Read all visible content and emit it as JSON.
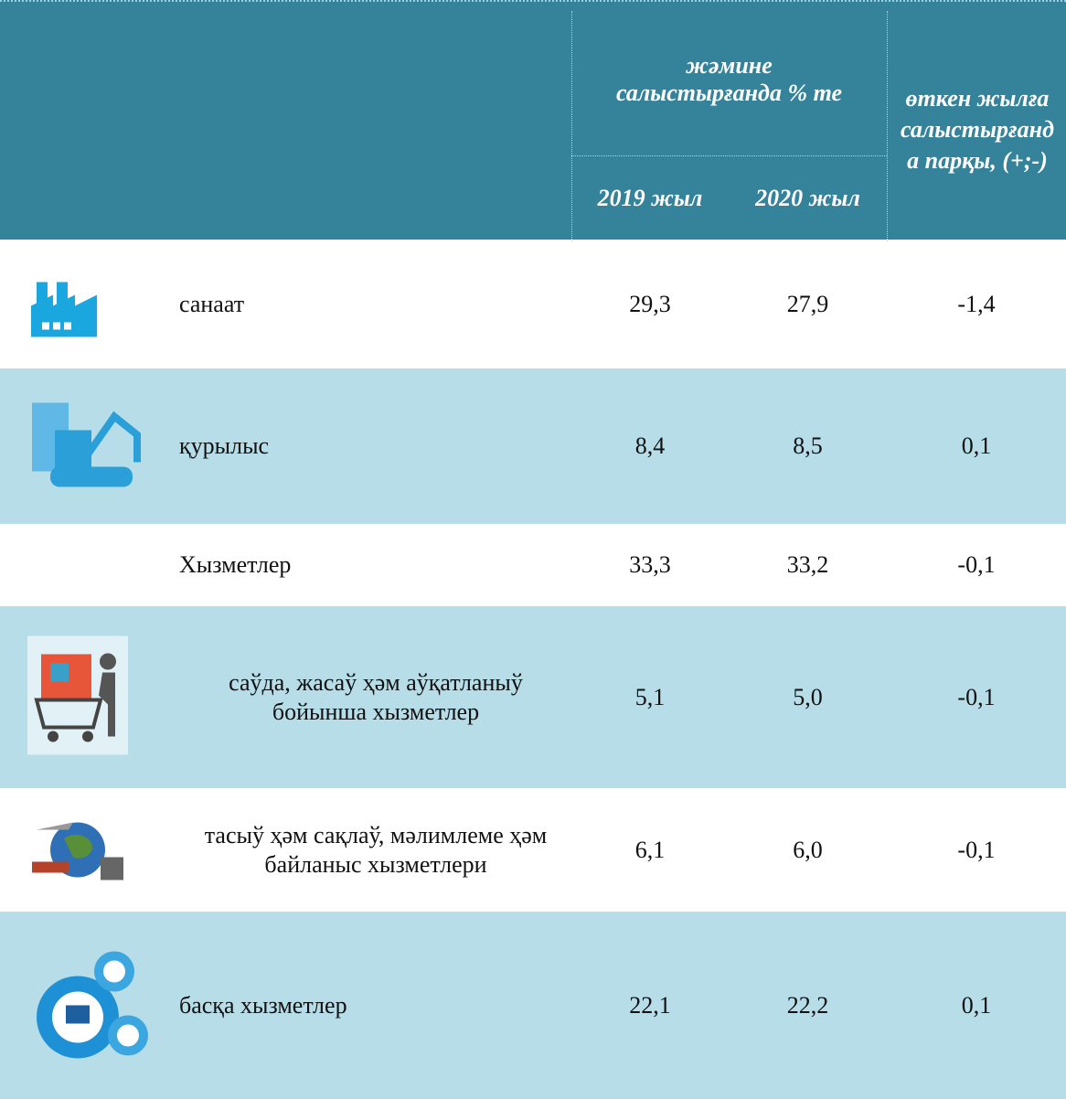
{
  "header": {
    "group_title": "жәмине салыстырғанда % те",
    "year1": "2019 жыл",
    "year2": "2020 жыл",
    "diff_title": "өткен жылға салыстырғанда парқы, (+;-)"
  },
  "table": {
    "rows": [
      [
        "санаат",
        "29,3",
        "27,9",
        "-1,4"
      ],
      [
        "қурылыс",
        "8,4",
        "8,5",
        "0,1"
      ],
      [
        "Хызметлер",
        "33,3",
        "33,2",
        "-0,1"
      ],
      [
        "саўда, жасаў ҳәм аўқатланыў бойынша хызметлер",
        "5,1",
        "5,0",
        "-0,1"
      ],
      [
        "тасыў ҳәм сақлаў, мәлимлеме ҳәм байланыс хызметлери",
        "6,1",
        "6,0",
        "-0,1"
      ],
      [
        "басқа хызметлер",
        "22,1",
        "22,2",
        "0,1"
      ]
    ]
  }
}
